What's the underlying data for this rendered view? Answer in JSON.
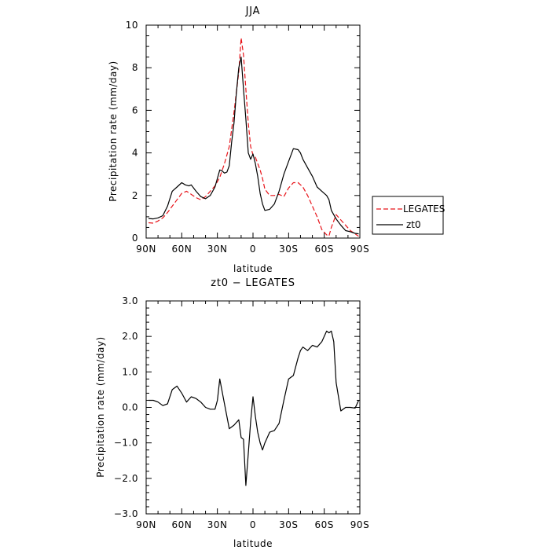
{
  "chart_data": [
    {
      "type": "line",
      "title": "JJA",
      "xlabel": "latitude",
      "ylabel": "Precipitation rate (mm/day)",
      "xlim": [
        90,
        -90
      ],
      "ylim": [
        0,
        10
      ],
      "xticks": [
        90,
        60,
        30,
        0,
        -30,
        -60,
        -90
      ],
      "xtick_labels": [
        "90N",
        "60N",
        "30N",
        "0",
        "30S",
        "60S",
        "90S"
      ],
      "yticks": [
        0,
        2,
        4,
        6,
        8,
        10
      ],
      "ytick_labels": [
        "0",
        "2",
        "4",
        "6",
        "8",
        "10"
      ],
      "grid": false,
      "legend": {
        "position": "right",
        "entries": [
          "LEGATES",
          "zt0"
        ]
      },
      "series": [
        {
          "name": "LEGATES",
          "color": "#e8141a",
          "dash": "dashed",
          "x": [
            88,
            84,
            80,
            76,
            72,
            68,
            64,
            60,
            56,
            52,
            48,
            44,
            40,
            36,
            32,
            28,
            24,
            20,
            16,
            12,
            10,
            8,
            6,
            4,
            2,
            0,
            -2,
            -4,
            -6,
            -8,
            -10,
            -14,
            -18,
            -22,
            -26,
            -30,
            -34,
            -38,
            -42,
            -46,
            -50,
            -54,
            -58,
            -62,
            -64,
            -66,
            -70,
            -74,
            -78,
            -82,
            -86,
            -89
          ],
          "y": [
            0.72,
            0.7,
            0.8,
            0.95,
            1.2,
            1.5,
            1.8,
            2.1,
            2.2,
            2.05,
            1.9,
            1.8,
            1.95,
            2.2,
            2.45,
            2.85,
            3.5,
            4.3,
            5.9,
            7.8,
            9.4,
            8.6,
            7.0,
            5.4,
            4.3,
            3.9,
            3.8,
            3.5,
            3.2,
            2.8,
            2.3,
            2.0,
            2.0,
            2.05,
            1.95,
            2.35,
            2.6,
            2.6,
            2.4,
            2.0,
            1.5,
            1.0,
            0.4,
            0.15,
            0.1,
            0.5,
            1.1,
            0.85,
            0.6,
            0.35,
            0.2,
            0.08
          ]
        },
        {
          "name": "zt0",
          "color": "#000000",
          "dash": "solid",
          "x": [
            88,
            84,
            80,
            76,
            72,
            68,
            64,
            60,
            57,
            54,
            52,
            48,
            44,
            40,
            36,
            32,
            28,
            26,
            24,
            22,
            20,
            18,
            16,
            14,
            12,
            10,
            8,
            6,
            4,
            2,
            0,
            -2,
            -4,
            -6,
            -8,
            -10,
            -14,
            -18,
            -22,
            -26,
            -30,
            -34,
            -38,
            -40,
            -42,
            -46,
            -50,
            -54,
            -58,
            -62,
            -64,
            -66,
            -70,
            -74,
            -78,
            -82,
            -86,
            -89
          ],
          "y": [
            0.92,
            0.9,
            0.95,
            1.05,
            1.5,
            2.2,
            2.4,
            2.6,
            2.5,
            2.45,
            2.5,
            2.2,
            1.95,
            1.85,
            2.0,
            2.4,
            3.2,
            3.15,
            3.05,
            3.1,
            3.4,
            4.5,
            5.4,
            6.8,
            8.0,
            8.5,
            7.0,
            5.6,
            4.0,
            3.7,
            3.95,
            3.5,
            2.9,
            2.1,
            1.6,
            1.3,
            1.35,
            1.6,
            2.2,
            3.0,
            3.6,
            4.2,
            4.15,
            4.0,
            3.7,
            3.3,
            2.9,
            2.4,
            2.2,
            2.0,
            1.8,
            1.3,
            0.9,
            0.6,
            0.35,
            0.3,
            0.22,
            0.2
          ]
        }
      ]
    },
    {
      "type": "line",
      "title": "zt0 − LEGATES",
      "xlabel": "latitude",
      "ylabel": "Precipitation rate (mm/day)",
      "xlim": [
        90,
        -90
      ],
      "ylim": [
        -3.0,
        3.0
      ],
      "xticks": [
        90,
        60,
        30,
        0,
        -30,
        -60,
        -90
      ],
      "xtick_labels": [
        "90N",
        "60N",
        "30N",
        "0",
        "30S",
        "60S",
        "90S"
      ],
      "yticks": [
        -3,
        -2,
        -1,
        0,
        1,
        2,
        3
      ],
      "ytick_labels": [
        "−3.0",
        "−2.0",
        "−1.0",
        "0.0",
        "1.0",
        "2.0",
        "3.0"
      ],
      "grid": false,
      "series": [
        {
          "color": "#000000",
          "dash": "solid",
          "x": [
            88,
            84,
            80,
            76,
            72,
            68,
            64,
            60,
            56,
            52,
            48,
            44,
            40,
            36,
            32,
            30,
            28,
            24,
            20,
            16,
            12,
            10,
            8,
            6,
            4,
            2,
            0,
            -2,
            -4,
            -6,
            -8,
            -10,
            -14,
            -18,
            -22,
            -26,
            -30,
            -34,
            -38,
            -40,
            -42,
            -46,
            -50,
            -54,
            -58,
            -62,
            -64,
            -66,
            -68,
            -70,
            -74,
            -78,
            -82,
            -86,
            -89
          ],
          "y": [
            0.2,
            0.2,
            0.15,
            0.05,
            0.1,
            0.5,
            0.6,
            0.4,
            0.15,
            0.3,
            0.25,
            0.15,
            0.0,
            -0.05,
            -0.05,
            0.2,
            0.8,
            0.1,
            -0.6,
            -0.5,
            -0.35,
            -0.85,
            -0.9,
            -2.2,
            -1.3,
            -0.4,
            0.3,
            -0.25,
            -0.7,
            -1.0,
            -1.2,
            -1.0,
            -0.7,
            -0.65,
            -0.45,
            0.2,
            0.8,
            0.9,
            1.4,
            1.6,
            1.7,
            1.6,
            1.75,
            1.7,
            1.85,
            2.15,
            2.1,
            2.15,
            1.85,
            0.7,
            -0.1,
            0.0,
            0.0,
            -0.02,
            0.2
          ]
        }
      ]
    }
  ]
}
